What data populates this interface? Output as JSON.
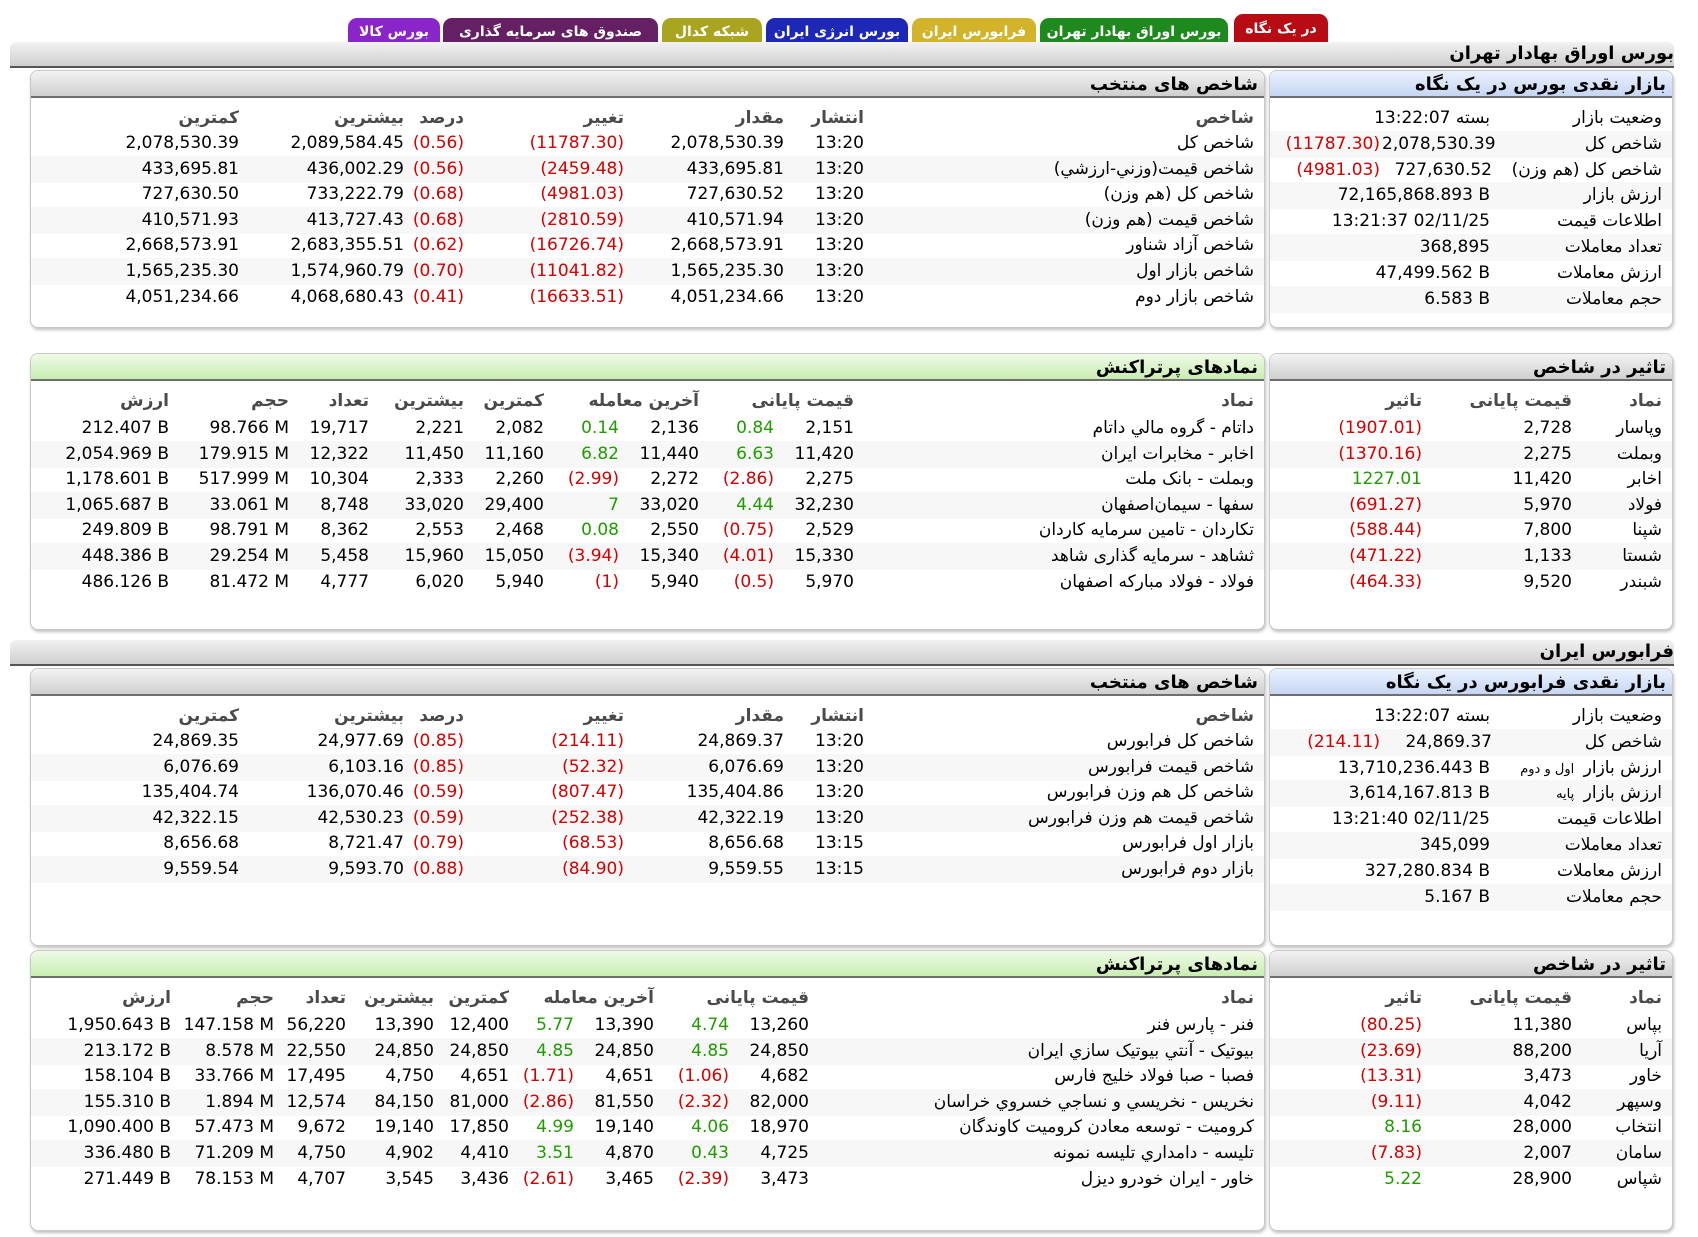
{
  "tabs": [
    {
      "label": "در یک نگاه",
      "color": "#b80c14",
      "active": true
    },
    {
      "label": "بورس اوراق بهادار تهران",
      "color": "#1e8a1e",
      "active": false
    },
    {
      "label": "فرابورس ایران",
      "color": "#d3b32a",
      "active": false
    },
    {
      "label": "بورس انرژی ایران",
      "color": "#1d28b6",
      "active": false
    },
    {
      "label": "شبکه کدال",
      "color": "#a9a521",
      "active": false
    },
    {
      "label": "صندوق های سرمایه گذاری",
      "color": "#651f63",
      "active": false
    },
    {
      "label": "بورس کالا",
      "color": "#8a25c9",
      "active": false
    }
  ],
  "colors": {
    "negative": "#d40000",
    "positive": "#1f9d00"
  },
  "tse": {
    "title": "بورس اوراق بهادار تهران",
    "glance": {
      "title": "بازار نقدی بورس در یک نگاه",
      "rows": [
        {
          "label": "وضعیت بازار",
          "value": "بسته 13:22:07",
          "change": ""
        },
        {
          "label": "شاخص کل",
          "value": "2,078,530.39",
          "change": "(11787.30)"
        },
        {
          "label": "شاخص کل (هم وزن)",
          "value": "727,630.52",
          "change": "(4981.03)"
        },
        {
          "label": "ارزش بازار",
          "value": "72,165,868.893 B",
          "change": ""
        },
        {
          "label": "اطلاعات قیمت",
          "value": "13:21:37 02/11/25",
          "change": ""
        },
        {
          "label": "تعداد معاملات",
          "value": "368,895",
          "change": ""
        },
        {
          "label": "ارزش معاملات",
          "value": "47,499.562 B",
          "change": ""
        },
        {
          "label": "حجم معاملات",
          "value": "6.583 B",
          "change": ""
        }
      ]
    },
    "indices": {
      "title": "شاخص های منتخب",
      "headers": {
        "name": "شاخص",
        "time": "انتشار",
        "amount": "مقدار",
        "change": "تغییر",
        "percent": "درصد",
        "high": "بیشترین",
        "low": "کمترین"
      },
      "rows": [
        {
          "name": "شاخص کل",
          "time": "13:20",
          "amount": "2,078,530.39",
          "change": "(11787.30)",
          "percent": "(0.56)",
          "high": "2,089,584.45",
          "low": "2,078,530.39"
        },
        {
          "name": "شاخص قیمت(وزني-ارزشي)",
          "time": "13:20",
          "amount": "433,695.81",
          "change": "(2459.48)",
          "percent": "(0.56)",
          "high": "436,002.29",
          "low": "433,695.81"
        },
        {
          "name": "شاخص کل (هم وزن)",
          "time": "13:20",
          "amount": "727,630.52",
          "change": "(4981.03)",
          "percent": "(0.68)",
          "high": "733,222.79",
          "low": "727,630.50"
        },
        {
          "name": "شاخص قیمت (هم وزن)",
          "time": "13:20",
          "amount": "410,571.94",
          "change": "(2810.59)",
          "percent": "(0.68)",
          "high": "413,727.43",
          "low": "410,571.93"
        },
        {
          "name": "شاخص آزاد شناور",
          "time": "13:20",
          "amount": "2,668,573.91",
          "change": "(16726.74)",
          "percent": "(0.62)",
          "high": "2,683,355.51",
          "low": "2,668,573.91"
        },
        {
          "name": "شاخص بازار اول",
          "time": "13:20",
          "amount": "1,565,235.30",
          "change": "(11041.82)",
          "percent": "(0.70)",
          "high": "1,574,960.79",
          "low": "1,565,235.30"
        },
        {
          "name": "شاخص بازار دوم",
          "time": "13:20",
          "amount": "4,051,234.66",
          "change": "(16633.51)",
          "percent": "(0.41)",
          "high": "4,068,680.43",
          "low": "4,051,234.66"
        }
      ]
    },
    "impact": {
      "title": "تاثیر در شاخص",
      "headers": {
        "symbol": "نماد",
        "price": "قیمت پایانی",
        "impact": "تاثیر"
      },
      "rows": [
        {
          "symbol": "وپاسار",
          "price": "2,728",
          "impact": "(1907.01)"
        },
        {
          "symbol": "وبملت",
          "price": "2,275",
          "impact": "(1370.16)"
        },
        {
          "symbol": "اخابر",
          "price": "11,420",
          "impact": "1227.01"
        },
        {
          "symbol": "فولاد",
          "price": "5,970",
          "impact": "(691.27)"
        },
        {
          "symbol": "شپنا",
          "price": "7,800",
          "impact": "(588.44)"
        },
        {
          "symbol": "شستا",
          "price": "1,133",
          "impact": "(471.22)"
        },
        {
          "symbol": "شبندر",
          "price": "9,520",
          "impact": "(464.33)"
        }
      ]
    },
    "active": {
      "title": "نمادهای پرتراکنش",
      "headers": {
        "symbol": "نماد",
        "close": "قیمت پایانی",
        "last": "آخرین معامله",
        "low": "کمترین",
        "high": "بیشترین",
        "count": "تعداد",
        "volume": "حجم",
        "value": "ارزش"
      },
      "rows": [
        {
          "symbol": "داتام - گروه مالي داتام",
          "close": "2,151",
          "close_chg": "0.84",
          "last": "2,136",
          "last_chg": "0.14",
          "low": "2,082",
          "high": "2,221",
          "count": "19,717",
          "volume": "98.766 M",
          "value": "212.407 B"
        },
        {
          "symbol": "اخابر - مخابرات ایران",
          "close": "11,420",
          "close_chg": "6.63",
          "last": "11,440",
          "last_chg": "6.82",
          "low": "11,160",
          "high": "11,450",
          "count": "12,322",
          "volume": "179.915 M",
          "value": "2,054.969 B"
        },
        {
          "symbol": "وبملت - بانک ملت",
          "close": "2,275",
          "close_chg": "(2.86)",
          "last": "2,272",
          "last_chg": "(2.99)",
          "low": "2,260",
          "high": "2,333",
          "count": "10,304",
          "volume": "517.999 M",
          "value": "1,178.601 B"
        },
        {
          "symbol": "سفها - سیمان‌اصفهان",
          "close": "32,230",
          "close_chg": "4.44",
          "last": "33,020",
          "last_chg": "7",
          "low": "29,400",
          "high": "33,020",
          "count": "8,748",
          "volume": "33.061 M",
          "value": "1,065.687 B"
        },
        {
          "symbol": "تکاردان - تامین سرمایه کاردان",
          "close": "2,529",
          "close_chg": "(0.75)",
          "last": "2,550",
          "last_chg": "0.08",
          "low": "2,468",
          "high": "2,553",
          "count": "8,362",
          "volume": "98.791 M",
          "value": "249.809 B"
        },
        {
          "symbol": "ثشاهد - سرمایه گذاری شاهد",
          "close": "15,330",
          "close_chg": "(4.01)",
          "last": "15,340",
          "last_chg": "(3.94)",
          "low": "15,050",
          "high": "15,960",
          "count": "5,458",
          "volume": "29.254 M",
          "value": "448.386 B"
        },
        {
          "symbol": "فولاد - فولاد مبارکه اصفهان",
          "close": "5,970",
          "close_chg": "(0.5)",
          "last": "5,940",
          "last_chg": "(1)",
          "low": "5,940",
          "high": "6,020",
          "count": "4,777",
          "volume": "81.472 M",
          "value": "486.126 B"
        }
      ]
    }
  },
  "ifb": {
    "title": "فرابورس ایران",
    "glance": {
      "title": "بازار نقدی فرابورس در یک نگاه",
      "rows": [
        {
          "label": "وضعیت بازار",
          "value": "بسته 13:22:07",
          "change": ""
        },
        {
          "label": "شاخص کل",
          "value": "24,869.37",
          "change": "(214.11)"
        },
        {
          "label": "ارزش بازار",
          "label_small": "اول و دوم",
          "value": "13,710,236.443 B",
          "change": ""
        },
        {
          "label": "ارزش بازار",
          "label_small": "پایه",
          "value": "3,614,167.813 B",
          "change": ""
        },
        {
          "label": "اطلاعات قیمت",
          "value": "13:21:40 02/11/25",
          "change": ""
        },
        {
          "label": "تعداد معاملات",
          "value": "345,099",
          "change": ""
        },
        {
          "label": "ارزش معاملات",
          "value": "327,280.834 B",
          "change": ""
        },
        {
          "label": "حجم معاملات",
          "value": "5.167 B",
          "change": ""
        }
      ]
    },
    "indices": {
      "title": "شاخص های منتخب",
      "headers": {
        "name": "شاخص",
        "time": "انتشار",
        "amount": "مقدار",
        "change": "تغییر",
        "percent": "درصد",
        "high": "بیشترین",
        "low": "کمترین"
      },
      "rows": [
        {
          "name": "شاخص کل فرابورس",
          "time": "13:20",
          "amount": "24,869.37",
          "change": "(214.11)",
          "percent": "(0.85)",
          "high": "24,977.69",
          "low": "24,869.35"
        },
        {
          "name": "شاخص قیمت فرابورس",
          "time": "13:20",
          "amount": "6,076.69",
          "change": "(52.32)",
          "percent": "(0.85)",
          "high": "6,103.16",
          "low": "6,076.69"
        },
        {
          "name": "شاخص کل هم وزن فرابورس",
          "time": "13:20",
          "amount": "135,404.86",
          "change": "(807.47)",
          "percent": "(0.59)",
          "high": "136,070.46",
          "low": "135,404.74"
        },
        {
          "name": "شاخص قیمت هم وزن فرابورس",
          "time": "13:20",
          "amount": "42,322.19",
          "change": "(252.38)",
          "percent": "(0.59)",
          "high": "42,530.23",
          "low": "42,322.15"
        },
        {
          "name": "بازار اول فرابورس",
          "time": "13:15",
          "amount": "8,656.68",
          "change": "(68.53)",
          "percent": "(0.79)",
          "high": "8,721.47",
          "low": "8,656.68"
        },
        {
          "name": "بازار دوم فرابورس",
          "time": "13:15",
          "amount": "9,559.55",
          "change": "(84.90)",
          "percent": "(0.88)",
          "high": "9,593.70",
          "low": "9,559.54"
        }
      ]
    },
    "impact": {
      "title": "تاثیر در شاخص",
      "headers": {
        "symbol": "نماد",
        "price": "قیمت پایانی",
        "impact": "تاثیر"
      },
      "rows": [
        {
          "symbol": "بپاس",
          "price": "11,380",
          "impact": "(80.25)"
        },
        {
          "symbol": "آریا",
          "price": "88,200",
          "impact": "(23.69)"
        },
        {
          "symbol": "خاور",
          "price": "3,473",
          "impact": "(13.31)"
        },
        {
          "symbol": "وسپهر",
          "price": "4,042",
          "impact": "(9.11)"
        },
        {
          "symbol": "انتخاب",
          "price": "28,000",
          "impact": "8.16"
        },
        {
          "symbol": "سامان",
          "price": "2,007",
          "impact": "(7.83)"
        },
        {
          "symbol": "شپاس",
          "price": "28,900",
          "impact": "5.22"
        }
      ]
    },
    "active": {
      "title": "نمادهای پرتراکنش",
      "headers": {
        "symbol": "نماد",
        "close": "قیمت پایانی",
        "last": "آخرین معامله",
        "low": "کمترین",
        "high": "بیشترین",
        "count": "تعداد",
        "volume": "حجم",
        "value": "ارزش"
      },
      "rows": [
        {
          "symbol": "فنر - پارس فنر",
          "close": "13,260",
          "close_chg": "4.74",
          "last": "13,390",
          "last_chg": "5.77",
          "low": "12,400",
          "high": "13,390",
          "count": "56,220",
          "volume": "147.158 M",
          "value": "1,950.643 B"
        },
        {
          "symbol": "بیوتیک - آنتي بیوتیک سازي ایران",
          "close": "24,850",
          "close_chg": "4.85",
          "last": "24,850",
          "last_chg": "4.85",
          "low": "24,850",
          "high": "24,850",
          "count": "22,550",
          "volume": "8.578 M",
          "value": "213.172 B"
        },
        {
          "symbol": "فصبا - صبا فولاد خلیج فارس",
          "close": "4,682",
          "close_chg": "(1.06)",
          "last": "4,651",
          "last_chg": "(1.71)",
          "low": "4,651",
          "high": "4,750",
          "count": "17,495",
          "volume": "33.766 M",
          "value": "158.104 B"
        },
        {
          "symbol": "نخریس - نخریسي و نساجي خسروي خراسان",
          "close": "82,000",
          "close_chg": "(2.32)",
          "last": "81,550",
          "last_chg": "(2.86)",
          "low": "81,000",
          "high": "84,150",
          "count": "12,574",
          "volume": "1.894 M",
          "value": "155.310 B"
        },
        {
          "symbol": "کرومیت - توسعه معادن کرومیت کاوندگان",
          "close": "18,970",
          "close_chg": "4.06",
          "last": "19,140",
          "last_chg": "4.99",
          "low": "17,850",
          "high": "19,140",
          "count": "9,672",
          "volume": "57.473 M",
          "value": "1,090.400 B"
        },
        {
          "symbol": "تلیسه - دامداري تلیسه نمونه",
          "close": "4,725",
          "close_chg": "0.43",
          "last": "4,870",
          "last_chg": "3.51",
          "low": "4,410",
          "high": "4,902",
          "count": "4,750",
          "volume": "71.209 M",
          "value": "336.480 B"
        },
        {
          "symbol": "خاور - ایران خودرو دیزل",
          "close": "3,473",
          "close_chg": "(2.39)",
          "last": "3,465",
          "last_chg": "(2.61)",
          "low": "3,436",
          "high": "3,545",
          "count": "4,707",
          "volume": "78.153 M",
          "value": "271.449 B"
        }
      ]
    }
  }
}
